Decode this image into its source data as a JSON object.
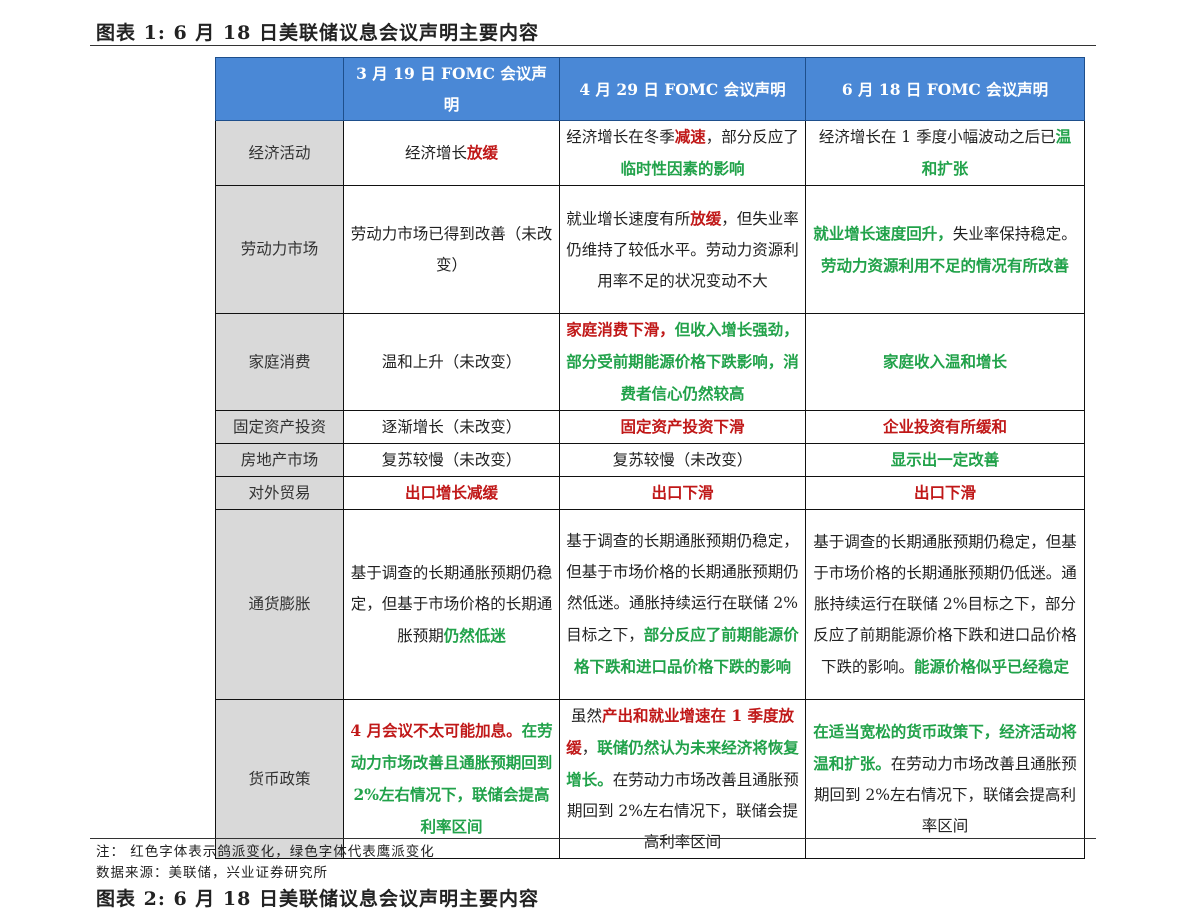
{
  "figure": {
    "title": "图表 1:   6 月 18 日美联储议息会议声明主要内容"
  },
  "table": {
    "headers": [
      "",
      "3 月 19 日 FOMC 会议声明",
      "4 月 29 日 FOMC 会议声明",
      "6 月 18 日 FOMC 会议声明"
    ],
    "rows": [
      {
        "label": "经济活动",
        "cells": [
          [
            {
              "t": "经济增长"
            },
            {
              "t": "放缓",
              "c": "r"
            }
          ],
          [
            {
              "t": "经济增长在冬季"
            },
            {
              "t": "减速",
              "c": "r"
            },
            {
              "t": "，部分反应了"
            },
            {
              "t": "临时性因素的影响",
              "c": "g"
            }
          ],
          [
            {
              "t": "经济增长在 1 季度小幅波动之后已"
            },
            {
              "t": "温和扩张",
              "c": "g"
            }
          ]
        ]
      },
      {
        "label": "劳动力市场",
        "cells": [
          [
            {
              "t": "劳动力市场已得到改善（未改变）"
            }
          ],
          [
            {
              "t": "就业增长速度有所"
            },
            {
              "t": "放缓",
              "c": "r"
            },
            {
              "t": "，但失业率仍维持了较低水平。劳动力资源利用率不足的状况变动不大"
            }
          ],
          [
            {
              "t": "就业增长速度回升，",
              "c": "g"
            },
            {
              "t": "失业率保持稳定。"
            },
            {
              "t": "劳动力资源利用不足的情况有所改善",
              "c": "g"
            }
          ]
        ]
      },
      {
        "label": "家庭消费",
        "cells": [
          [
            {
              "t": "温和上升（未改变）"
            }
          ],
          [
            {
              "t": "家庭消费下滑，",
              "c": "r"
            },
            {
              "t": "但收入增长强劲，部分受前期能源价格下跌影响，消费者信心仍然较高",
              "c": "g"
            }
          ],
          [
            {
              "t": "家庭收入温和增长",
              "c": "g"
            }
          ]
        ]
      },
      {
        "label": "固定资产投资",
        "cells": [
          [
            {
              "t": "逐渐增长（未改变）"
            }
          ],
          [
            {
              "t": "固定资产投资下滑",
              "c": "r"
            }
          ],
          [
            {
              "t": "企业投资有所缓和",
              "c": "r"
            }
          ]
        ]
      },
      {
        "label": "房地产市场",
        "cells": [
          [
            {
              "t": "复苏较慢（未改变）"
            }
          ],
          [
            {
              "t": "复苏较慢（未改变）"
            }
          ],
          [
            {
              "t": "显示出一定改善",
              "c": "g"
            }
          ]
        ]
      },
      {
        "label": "对外贸易",
        "cells": [
          [
            {
              "t": "出口增长减缓",
              "c": "r"
            }
          ],
          [
            {
              "t": "出口下滑",
              "c": "r"
            }
          ],
          [
            {
              "t": "出口下滑",
              "c": "r"
            }
          ]
        ]
      },
      {
        "label": "通货膨胀",
        "cells": [
          [
            {
              "t": "基于调查的长期通胀预期仍稳定，但基于市场价格的长期通胀预期"
            },
            {
              "t": "仍然低迷",
              "c": "g"
            }
          ],
          [
            {
              "t": "基于调查的长期通胀预期仍稳定，但基于市场价格的长期通胀预期仍然低迷。通胀持续运行在联储 2%目标之下，"
            },
            {
              "t": "部分反应了前期能源价格下跌和进口品价格下跌的影响",
              "c": "g"
            }
          ],
          [
            {
              "t": "基于调查的长期通胀预期仍稳定，但基于市场价格的长期通胀预期仍低迷。通胀持续运行在联储 2%目标之下，部分反应了前期能源价格下跌和进口品价格下跌的影响。"
            },
            {
              "t": "能源价格似乎已经稳定",
              "c": "g"
            }
          ]
        ]
      },
      {
        "label": "货币政策",
        "cells": [
          [
            {
              "t": "4 月会议不太可能加息。",
              "c": "r"
            },
            {
              "t": "在劳动力市场改善且通胀预期回到 2%左右情况下，联储会提高利率区间",
              "c": "g"
            }
          ],
          [
            {
              "t": "虽然"
            },
            {
              "t": "产出和就业增速在 1 季度放缓",
              "c": "r"
            },
            {
              "t": "，"
            },
            {
              "t": "联储仍然认为未来经济将恢复增长。",
              "c": "g"
            },
            {
              "t": "在劳动力市场改善且通胀预期回到 2%左右情况下，联储会提高利率区间"
            }
          ],
          [
            {
              "t": "在适当宽松的货币政策下，经济活动将温和扩张。",
              "c": "g"
            },
            {
              "t": "在劳动力市场改善且通胀预期回到 2%左右情况下，联储会提高利率区间"
            }
          ]
        ]
      }
    ]
  },
  "notes": {
    "note": "注：  红色字体表示鸽派变化，绿色字体代表鹰派变化",
    "source": "数据来源：美联储，兴业证券研究所"
  },
  "next_figure": {
    "title": "图表 2:   6 月 18 日美联储议息会议声明主要内容"
  }
}
